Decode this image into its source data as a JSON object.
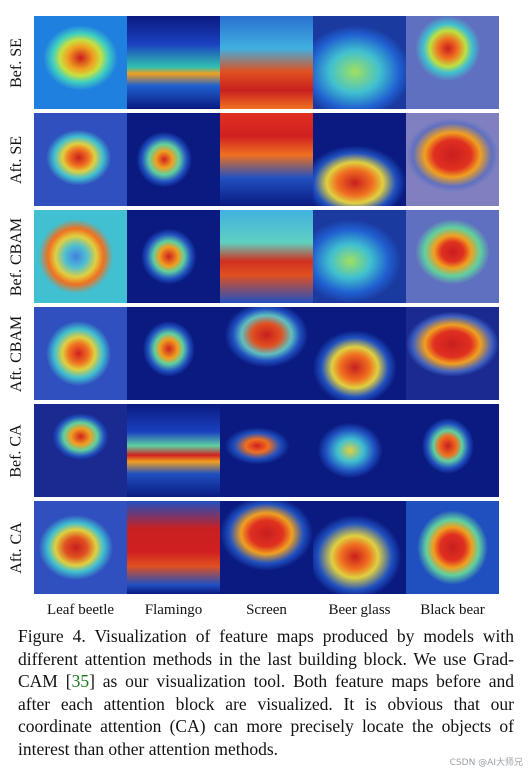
{
  "row_labels": [
    "Bef. SE",
    "Aft. SE",
    "Bef. CBAM",
    "Aft. CBAM",
    "Bef. CA",
    "Aft. CA"
  ],
  "column_labels": [
    "Leaf beetle",
    "Flamingo",
    "Screen",
    "Beer glass",
    "Black bear"
  ],
  "caption": {
    "prefix": "Figure 4. Visualization of feature maps produced by models with different attention methods in the last building block.  We use Grad-CAM [",
    "ref": "35",
    "suffix": "] as our visualization tool.  Both feature maps before and after each attention block are visualized.  It is obvious that our coordinate attention (CA) can more precisely locate the objects of interest than other attention methods."
  },
  "watermark": "CSDN @AI大师兄"
}
